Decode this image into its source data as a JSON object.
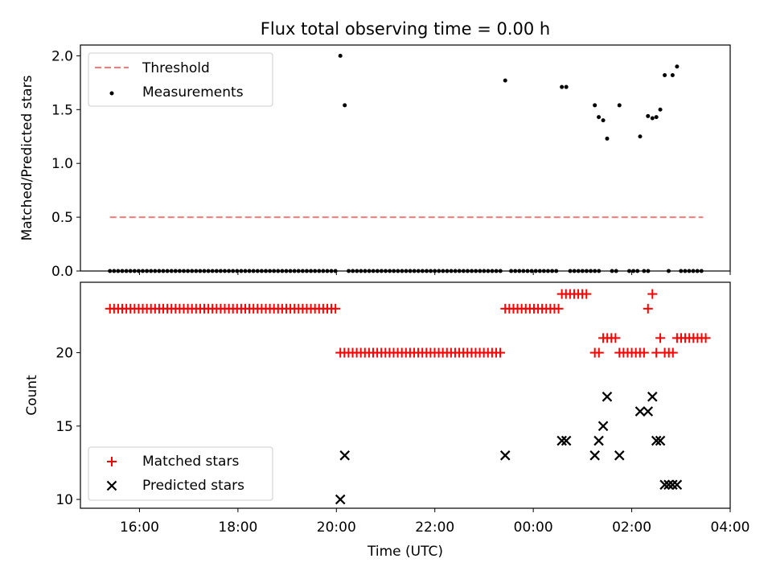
{
  "chart_data": [
    {
      "type": "scatter",
      "title": "Flux total observing time = 0.00 h",
      "xlabel": "",
      "ylabel": "Matched/Predicted stars",
      "xlim": [
        14.8,
        28.0
      ],
      "ylim": [
        0.0,
        2.1
      ],
      "yticks": [
        0.0,
        0.5,
        1.0,
        1.5,
        2.0
      ],
      "ytick_labels": [
        "0.0",
        "0.5",
        "1.0",
        "1.5",
        "2.0"
      ],
      "legend_position": "top-left",
      "series": [
        {
          "name": "Threshold",
          "kind": "line",
          "style": "dashed",
          "color": "#ff7777",
          "points": [
            [
              15.4,
              0.5
            ],
            [
              27.45,
              0.5
            ]
          ]
        },
        {
          "name": "Measurements",
          "kind": "scatter",
          "color": "#000000",
          "zero_runs": [
            [
              15.4,
              20.0,
              0.0833
            ],
            [
              20.25,
              23.35,
              0.0833
            ],
            [
              23.55,
              24.5,
              0.0833
            ],
            [
              24.75,
              25.3,
              0.0833
            ],
            [
              25.6,
              25.72,
              0.0833
            ],
            [
              25.95,
              26.15,
              0.0833
            ],
            [
              26.25,
              26.35,
              0.0833
            ],
            [
              26.75,
              26.75,
              0.0833
            ],
            [
              27.0,
              27.4,
              0.0833
            ]
          ],
          "points": [
            [
              20.08,
              2.0
            ],
            [
              20.17,
              1.54
            ],
            [
              23.43,
              1.77
            ],
            [
              24.58,
              1.71
            ],
            [
              24.67,
              1.71
            ],
            [
              25.25,
              1.54
            ],
            [
              25.33,
              1.43
            ],
            [
              25.42,
              1.4
            ],
            [
              25.5,
              1.23
            ],
            [
              25.75,
              1.54
            ],
            [
              26.17,
              1.25
            ],
            [
              26.33,
              1.44
            ],
            [
              26.42,
              1.42
            ],
            [
              26.5,
              1.43
            ],
            [
              26.58,
              1.5
            ],
            [
              26.67,
              1.82
            ],
            [
              26.83,
              1.82
            ],
            [
              26.92,
              1.9
            ]
          ]
        }
      ]
    },
    {
      "type": "scatter",
      "title": "",
      "xlabel": "Time (UTC)",
      "ylabel": "Count",
      "xlim": [
        14.8,
        28.0
      ],
      "ylim": [
        9.4,
        24.8
      ],
      "xticks": [
        16,
        18,
        20,
        22,
        24,
        26,
        28
      ],
      "xtick_labels": [
        "16:00",
        "18:00",
        "20:00",
        "22:00",
        "00:00",
        "02:00",
        "04:00"
      ],
      "yticks": [
        10,
        15,
        20
      ],
      "ytick_labels": [
        "10",
        "15",
        "20"
      ],
      "legend_position": "bottom-left",
      "series": [
        {
          "name": "Matched stars",
          "marker": "+",
          "color": "#ff0000",
          "runs": [
            [
              15.4,
              20.0,
              0.0833,
              23
            ],
            [
              20.08,
              23.35,
              0.0833,
              20
            ],
            [
              23.43,
              24.5,
              0.0833,
              23
            ],
            [
              24.58,
              25.1,
              0.0833,
              24
            ],
            [
              25.25,
              25.33,
              0.0833,
              20
            ],
            [
              25.42,
              25.67,
              0.0833,
              21
            ],
            [
              25.75,
              26.25,
              0.0833,
              20
            ],
            [
              26.33,
              26.33,
              0.0833,
              23
            ],
            [
              26.42,
              26.42,
              0.0833,
              24
            ],
            [
              26.5,
              26.5,
              0.0833,
              20
            ],
            [
              26.58,
              26.58,
              0.0833,
              21
            ],
            [
              26.67,
              26.83,
              0.0833,
              20
            ],
            [
              26.92,
              27.5,
              0.0833,
              21
            ]
          ],
          "points": []
        },
        {
          "name": "Predicted stars",
          "marker": "x",
          "color": "#000000",
          "points": [
            [
              20.08,
              10
            ],
            [
              20.17,
              13
            ],
            [
              23.43,
              13
            ],
            [
              24.58,
              14
            ],
            [
              24.67,
              14
            ],
            [
              25.25,
              13
            ],
            [
              25.33,
              14
            ],
            [
              25.42,
              15
            ],
            [
              25.5,
              17
            ],
            [
              25.75,
              13
            ],
            [
              26.17,
              16
            ],
            [
              26.33,
              16
            ],
            [
              26.42,
              17
            ],
            [
              26.5,
              14
            ],
            [
              26.58,
              14
            ],
            [
              26.67,
              11
            ],
            [
              26.75,
              11
            ],
            [
              26.83,
              11
            ],
            [
              26.92,
              11
            ]
          ]
        }
      ]
    }
  ]
}
